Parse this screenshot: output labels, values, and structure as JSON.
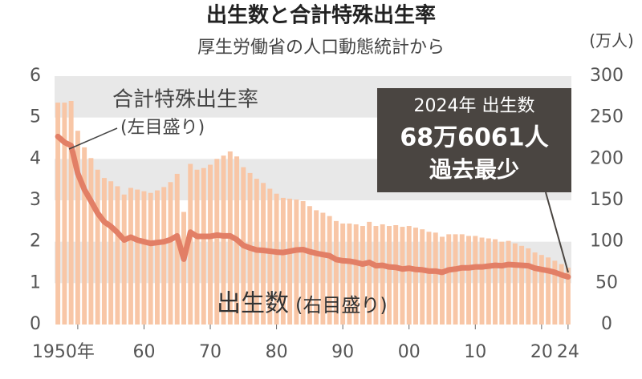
{
  "chart_data": {
    "type": "bar",
    "title": "出生数と合計特殊出生率",
    "subtitle": "厚生労働省の人口動態統計から",
    "y2label": "(万人)",
    "annotations": [
      "(左目盛り)",
      "(右目盛り)",
      "2024年 出生数",
      "68万6061人",
      "過去最少"
    ],
    "x": [
      1947,
      1948,
      1949,
      1950,
      1951,
      1952,
      1953,
      1954,
      1955,
      1956,
      1957,
      1958,
      1959,
      1960,
      1961,
      1962,
      1963,
      1964,
      1965,
      1966,
      1967,
      1968,
      1969,
      1970,
      1971,
      1972,
      1973,
      1974,
      1975,
      1976,
      1977,
      1978,
      1979,
      1980,
      1981,
      1982,
      1983,
      1984,
      1985,
      1986,
      1987,
      1988,
      1989,
      1990,
      1991,
      1992,
      1993,
      1994,
      1995,
      1996,
      1997,
      1998,
      1999,
      2000,
      2001,
      2002,
      2003,
      2004,
      2005,
      2006,
      2007,
      2008,
      2009,
      2010,
      2011,
      2012,
      2013,
      2014,
      2015,
      2016,
      2017,
      2018,
      2019,
      2020,
      2021,
      2022,
      2023,
      2024
    ],
    "xlim": [
      1946.5,
      2024.5
    ],
    "xticks": [
      {
        "value": 1950,
        "label": "1950年"
      },
      {
        "value": 1960,
        "label": "60"
      },
      {
        "value": 1970,
        "label": "70"
      },
      {
        "value": 1980,
        "label": "80"
      },
      {
        "value": 1990,
        "label": "90"
      },
      {
        "value": 2000,
        "label": "00"
      },
      {
        "value": 2010,
        "label": "10"
      },
      {
        "value": 2020,
        "label": "20"
      },
      {
        "value": 2024,
        "label": "24"
      }
    ],
    "ylim": [
      0,
      6
    ],
    "yticks": [
      0,
      1,
      2,
      3,
      4,
      5,
      6
    ],
    "y2lim": [
      0,
      300
    ],
    "y2ticks": [
      0,
      50,
      100,
      150,
      200,
      250,
      300
    ],
    "grid": true,
    "series": [
      {
        "name": "出生数",
        "type": "bar",
        "axis": "y2",
        "color": "#f8c6a6",
        "values": [
          268,
          268,
          270,
          234,
          214,
          201,
          187,
          177,
          173,
          167,
          157,
          165,
          163,
          161,
          159,
          162,
          166,
          172,
          182,
          136,
          194,
          187,
          189,
          193,
          200,
          204,
          209,
          203,
          190,
          183,
          176,
          171,
          164,
          158,
          153,
          152,
          151,
          149,
          143,
          138,
          135,
          131,
          125,
          122,
          122,
          121,
          119,
          124,
          119,
          121,
          119,
          120,
          118,
          119,
          117,
          115,
          112,
          111,
          106,
          109,
          109,
          109,
          107,
          107,
          105,
          104,
          103,
          100,
          101,
          98,
          95,
          92,
          87,
          84,
          81,
          77,
          73,
          68.6061
        ]
      },
      {
        "name": "合計特殊出生率",
        "type": "line",
        "axis": "y",
        "color": "#e27f66",
        "values": [
          4.54,
          4.4,
          4.32,
          3.65,
          3.26,
          2.98,
          2.69,
          2.48,
          2.37,
          2.22,
          2.04,
          2.11,
          2.04,
          2.0,
          1.96,
          1.98,
          2.0,
          2.05,
          2.14,
          1.58,
          2.23,
          2.13,
          2.13,
          2.13,
          2.16,
          2.14,
          2.14,
          2.05,
          1.91,
          1.85,
          1.8,
          1.79,
          1.77,
          1.75,
          1.74,
          1.77,
          1.8,
          1.81,
          1.76,
          1.72,
          1.69,
          1.66,
          1.57,
          1.54,
          1.53,
          1.5,
          1.46,
          1.5,
          1.42,
          1.43,
          1.39,
          1.38,
          1.34,
          1.36,
          1.33,
          1.32,
          1.29,
          1.29,
          1.26,
          1.32,
          1.34,
          1.37,
          1.37,
          1.39,
          1.39,
          1.41,
          1.43,
          1.42,
          1.45,
          1.44,
          1.43,
          1.42,
          1.36,
          1.33,
          1.3,
          1.26,
          1.2,
          1.15
        ]
      }
    ]
  }
}
